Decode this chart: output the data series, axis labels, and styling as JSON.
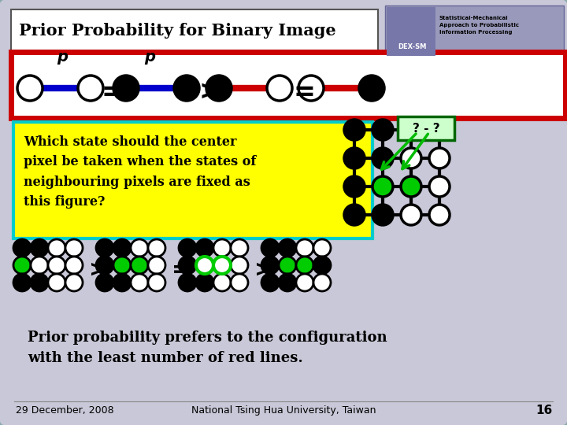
{
  "title": "Prior Probability for Binary Image",
  "bg_color": "#7B7FBF",
  "slide_bg": "#C8C8D8",
  "title_box_color": "#FFFFFF",
  "title_color": "#000000",
  "footer_date": "29 December, 2008",
  "footer_center": "National Tsing Hua University, Taiwan",
  "footer_page": "16",
  "question_text": "Which state should the center\npixel be taken when the states of\nneighbouring pixels are fixed as\nthis figure?",
  "conclusion_text": "Prior probability prefers to the configuration\nwith the least number of red lines.",
  "question_box_bg": "#FFFF00",
  "question_box_border": "#00CCCC",
  "qmark_box_bg": "#CCFFCC",
  "qmark_box_border": "#006600",
  "qmark_text": "? - ?",
  "white_color": "#FFFFFF",
  "black_color": "#000000",
  "blue_color": "#0000CC",
  "red_color": "#CC0000",
  "green_color": "#00CC00",
  "green_arrow": "#00BB00",
  "slide_border": "#88AAAA"
}
